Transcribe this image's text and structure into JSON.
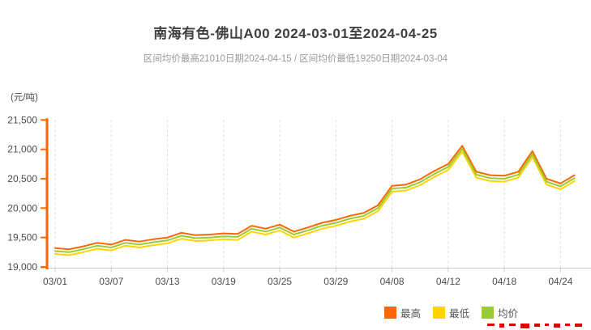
{
  "title": "南海有色-佛山A00 2024-03-01至2024-04-25",
  "subtitle": "区间均价最高21010日期2024-04-15 / 区间均价最低19250日期2024-03-04",
  "y_unit_label": "(元/吨)",
  "colors": {
    "title": "#404040",
    "subtitle": "#999999",
    "axis_line": "#ff6600",
    "x_axis_line": "#cccccc",
    "gridline": "#dddddd",
    "tick_text": "#4d4d4d",
    "series_high": "#ff6600",
    "series_low": "#ffd400",
    "series_avg": "#99cc33",
    "watermark": "#e00000"
  },
  "legend": [
    {
      "label": "最高",
      "color": "#ff6600"
    },
    {
      "label": "最低",
      "color": "#ffd400"
    },
    {
      "label": "均价",
      "color": "#99cc33"
    }
  ],
  "chart_data": {
    "type": "line",
    "title": "南海有色-佛山A00 2024-03-01至2024-04-25",
    "xlabel": "",
    "ylabel": "(元/吨)",
    "ylim": [
      19000,
      21500
    ],
    "y_ticks": [
      19000,
      19500,
      20000,
      20500,
      21000,
      21500
    ],
    "y_tick_labels": [
      "19,000",
      "19,500",
      "20,000",
      "20,500",
      "21,000",
      "21,500"
    ],
    "grid": "vertical-dashed",
    "legend_position": "bottom-right",
    "x": [
      "03/01",
      "03/04",
      "03/05",
      "03/06",
      "03/07",
      "03/08",
      "03/11",
      "03/12",
      "03/13",
      "03/14",
      "03/15",
      "03/18",
      "03/19",
      "03/20",
      "03/21",
      "03/22",
      "03/25",
      "03/26",
      "03/27",
      "03/28",
      "03/29",
      "04/01",
      "04/02",
      "04/03",
      "04/08",
      "04/09",
      "04/10",
      "04/11",
      "04/12",
      "04/15",
      "04/16",
      "04/17",
      "04/18",
      "04/19",
      "04/22",
      "04/23",
      "04/24",
      "04/25"
    ],
    "x_tick_labels": [
      "03/01",
      "03/07",
      "03/13",
      "03/19",
      "03/25",
      "03/29",
      "04/08",
      "04/12",
      "04/18",
      "04/24"
    ],
    "x_tick_indices": [
      0,
      4,
      8,
      12,
      16,
      20,
      24,
      28,
      32,
      36
    ],
    "series": [
      {
        "name": "最高",
        "color": "#ff6600",
        "values": [
          19320,
          19300,
          19350,
          19410,
          19380,
          19460,
          19430,
          19470,
          19500,
          19580,
          19540,
          19550,
          19570,
          19560,
          19700,
          19650,
          19720,
          19600,
          19670,
          19750,
          19800,
          19870,
          19920,
          20050,
          20380,
          20400,
          20490,
          20630,
          20750,
          21060,
          20620,
          20560,
          20550,
          20620,
          20970,
          20500,
          20420,
          20560
        ]
      },
      {
        "name": "最低",
        "color": "#ffd400",
        "values": [
          19220,
          19200,
          19250,
          19310,
          19280,
          19360,
          19330,
          19370,
          19400,
          19480,
          19440,
          19450,
          19470,
          19460,
          19600,
          19550,
          19620,
          19500,
          19570,
          19650,
          19700,
          19770,
          19820,
          19950,
          20280,
          20300,
          20390,
          20530,
          20650,
          20960,
          20520,
          20460,
          20450,
          20520,
          20870,
          20400,
          20320,
          20460
        ]
      },
      {
        "name": "均价",
        "color": "#99cc33",
        "values": [
          19270,
          19250,
          19300,
          19360,
          19330,
          19410,
          19380,
          19420,
          19450,
          19530,
          19490,
          19500,
          19520,
          19510,
          19650,
          19600,
          19670,
          19550,
          19620,
          19700,
          19750,
          19820,
          19870,
          20000,
          20330,
          20350,
          20440,
          20580,
          20700,
          21010,
          20570,
          20510,
          20500,
          20570,
          20920,
          20450,
          20370,
          20510
        ]
      }
    ],
    "annotations": {
      "period_avg_high": {
        "value": 21010,
        "date": "2024-04-15"
      },
      "period_avg_low": {
        "value": 19250,
        "date": "2024-03-04"
      }
    }
  }
}
